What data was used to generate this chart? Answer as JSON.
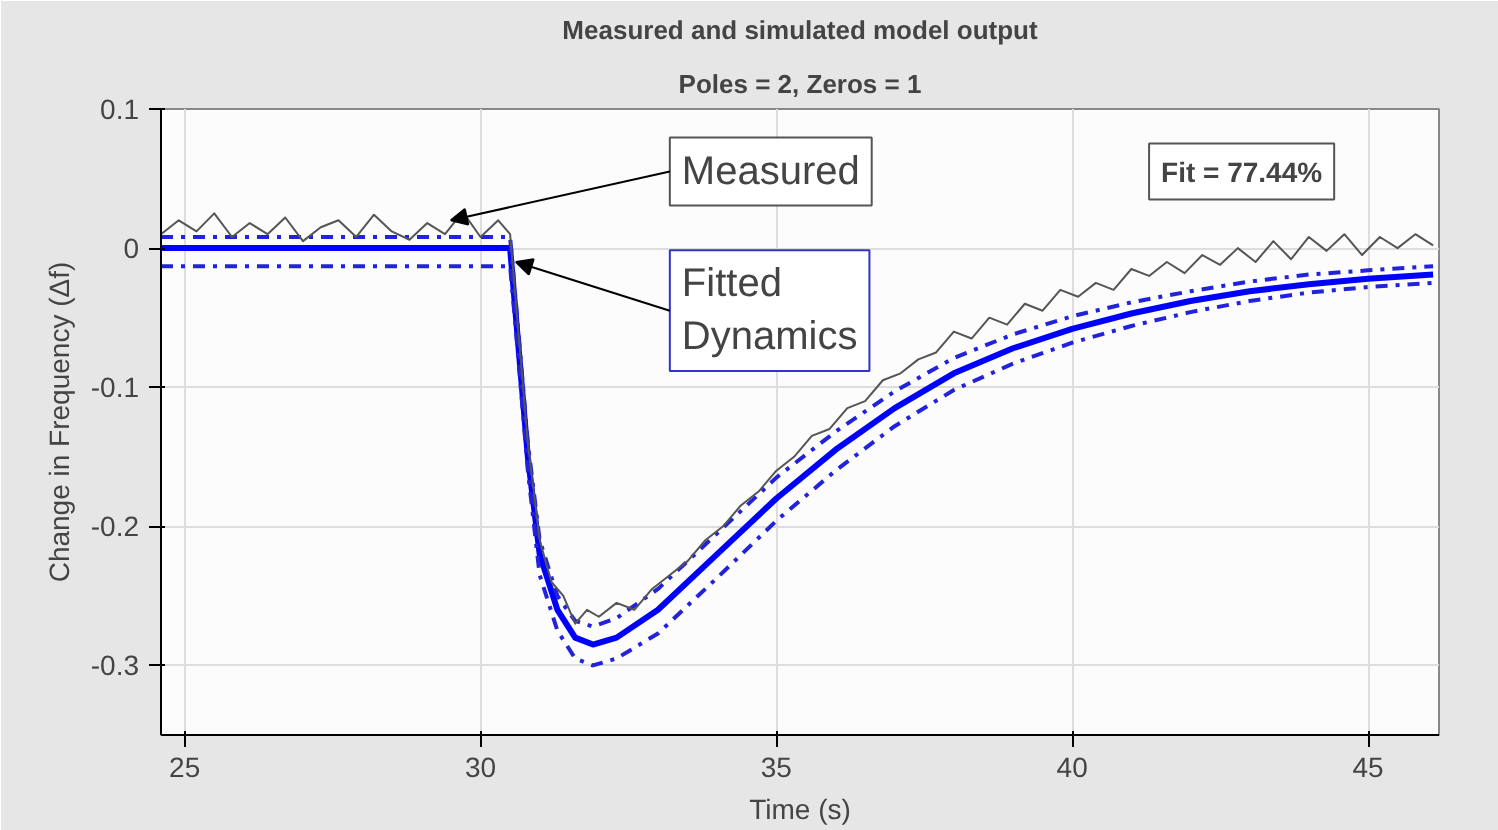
{
  "chart_data": {
    "type": "line",
    "title": "Measured and simulated model output",
    "subtitle": "Poles = 2, Zeros = 1",
    "xlabel": "Time (s)",
    "ylabel": "Change in Frequency (Δf)",
    "xlim": [
      24.6,
      46.2
    ],
    "ylim": [
      -0.35,
      0.1
    ],
    "xticks": [
      25,
      30,
      35,
      40,
      45
    ],
    "yticks": [
      -0.3,
      -0.2,
      -0.1,
      0,
      0.1
    ],
    "grid": true,
    "annotations": [
      {
        "text": "Measured",
        "x": 29.5,
        "y": 0.02
      },
      {
        "text": "Fitted Dynamics",
        "x": 30.6,
        "y": -0.01
      },
      "Fit = 77.44%"
    ],
    "series": [
      {
        "color": "#555555",
        "line_style": "solid",
        "x": [
          24.6,
          24.9,
          25.2,
          25.5,
          25.8,
          26.1,
          26.4,
          26.7,
          27.0,
          27.3,
          27.6,
          27.9,
          28.2,
          28.5,
          28.8,
          29.1,
          29.4,
          29.7,
          30.0,
          30.3,
          30.5,
          30.6,
          30.8,
          31.0,
          31.2,
          31.4,
          31.6,
          31.8,
          32.0,
          32.3,
          32.6,
          32.9,
          33.2,
          33.5,
          33.8,
          34.1,
          34.4,
          34.7,
          35.0,
          35.3,
          35.6,
          35.9,
          36.2,
          36.5,
          36.8,
          37.1,
          37.4,
          37.7,
          38.0,
          38.3,
          38.6,
          38.9,
          39.2,
          39.5,
          39.8,
          40.1,
          40.4,
          40.7,
          41.0,
          41.3,
          41.6,
          41.9,
          42.2,
          42.5,
          42.8,
          43.1,
          43.4,
          43.7,
          44.0,
          44.3,
          44.6,
          44.9,
          45.2,
          45.5,
          45.8,
          46.1
        ],
        "values": [
          0.01,
          0.02,
          0.012,
          0.025,
          0.008,
          0.018,
          0.01,
          0.022,
          0.005,
          0.015,
          0.02,
          0.008,
          0.024,
          0.012,
          0.006,
          0.018,
          0.01,
          0.026,
          0.008,
          0.02,
          0.01,
          -0.04,
          -0.14,
          -0.21,
          -0.24,
          -0.25,
          -0.27,
          -0.26,
          -0.265,
          -0.255,
          -0.26,
          -0.245,
          -0.235,
          -0.225,
          -0.21,
          -0.2,
          -0.185,
          -0.175,
          -0.16,
          -0.15,
          -0.135,
          -0.13,
          -0.115,
          -0.11,
          -0.095,
          -0.09,
          -0.08,
          -0.075,
          -0.06,
          -0.065,
          -0.05,
          -0.055,
          -0.04,
          -0.045,
          -0.03,
          -0.035,
          -0.025,
          -0.03,
          -0.015,
          -0.02,
          -0.01,
          -0.018,
          -0.005,
          -0.012,
          0.0,
          -0.01,
          0.005,
          -0.008,
          0.008,
          -0.002,
          0.01,
          -0.005,
          0.008,
          0.0,
          0.01,
          0.002
        ]
      },
      {
        "color": "#0000ff",
        "line_style": "solid",
        "x": [
          24.6,
          30.5,
          30.6,
          30.8,
          31.0,
          31.3,
          31.6,
          31.9,
          32.3,
          33,
          34,
          35,
          36,
          37,
          38,
          39,
          40,
          41,
          42,
          43,
          44,
          45,
          46.1
        ],
        "values": [
          0,
          0,
          -0.05,
          -0.15,
          -0.22,
          -0.26,
          -0.28,
          -0.285,
          -0.28,
          -0.26,
          -0.22,
          -0.18,
          -0.145,
          -0.115,
          -0.09,
          -0.072,
          -0.058,
          -0.047,
          -0.038,
          -0.031,
          -0.026,
          -0.022,
          -0.019
        ]
      },
      {
        "color": "#2222dd",
        "line_style": "dashed",
        "x": [
          24.6,
          30.5,
          30.6,
          30.8,
          31.0,
          31.3,
          31.6,
          31.9,
          32.3,
          33,
          34,
          35,
          36,
          37,
          38,
          39,
          40,
          41,
          42,
          43,
          44,
          45,
          46.1
        ],
        "values": [
          0.008,
          0.008,
          -0.04,
          -0.14,
          -0.21,
          -0.25,
          -0.268,
          -0.272,
          -0.266,
          -0.245,
          -0.205,
          -0.165,
          -0.132,
          -0.103,
          -0.079,
          -0.062,
          -0.049,
          -0.039,
          -0.031,
          -0.024,
          -0.019,
          -0.016,
          -0.013
        ]
      },
      {
        "color": "#2222dd",
        "line_style": "dashed",
        "x": [
          24.6,
          30.5,
          30.6,
          30.8,
          31.0,
          31.3,
          31.6,
          31.9,
          32.3,
          33,
          34,
          35,
          36,
          37,
          38,
          39,
          40,
          41,
          42,
          43,
          44,
          45,
          46.1
        ],
        "values": [
          -0.013,
          -0.013,
          -0.06,
          -0.16,
          -0.235,
          -0.275,
          -0.295,
          -0.3,
          -0.295,
          -0.277,
          -0.237,
          -0.196,
          -0.16,
          -0.128,
          -0.102,
          -0.083,
          -0.068,
          -0.056,
          -0.046,
          -0.038,
          -0.032,
          -0.028,
          -0.025
        ]
      }
    ]
  }
}
